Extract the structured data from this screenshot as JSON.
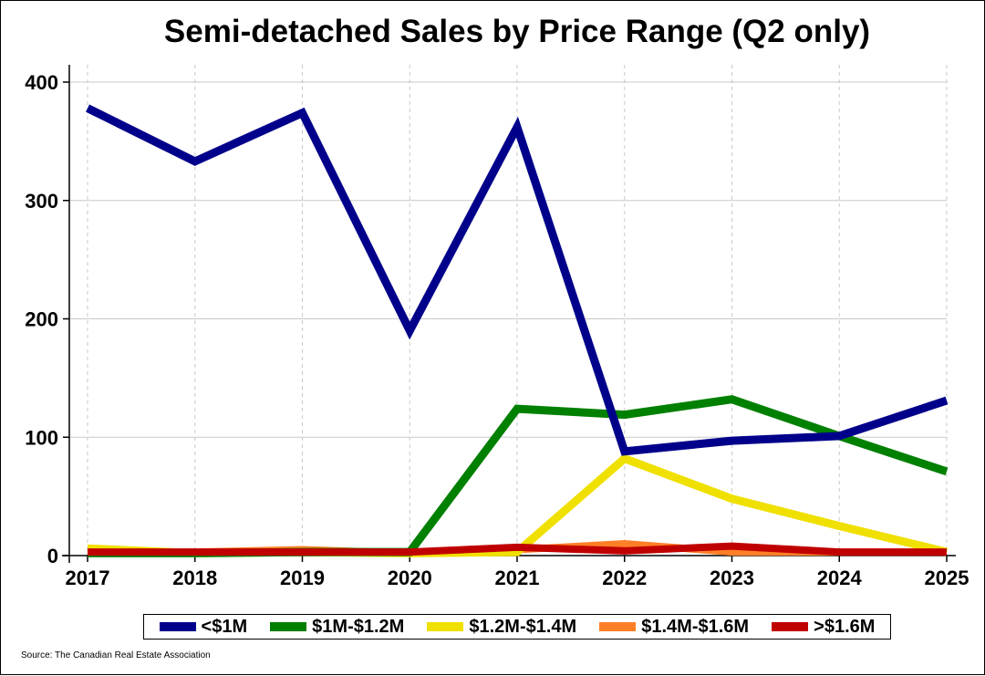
{
  "chart_data": {
    "type": "line",
    "title": "Semi-detached Sales by Price Range (Q2 only)",
    "xlabel": "",
    "ylabel": "",
    "x": [
      "2017",
      "2018",
      "2019",
      "2020",
      "2021",
      "2022",
      "2023",
      "2024",
      "2025"
    ],
    "ylim": [
      0,
      410
    ],
    "yticks": [
      0,
      100,
      200,
      300,
      400
    ],
    "grid": true,
    "legend_position": "bottom",
    "series": [
      {
        "name": "<$1M",
        "color": "#00008B",
        "values": [
          378,
          333,
          374,
          190,
          362,
          88,
          97,
          101,
          131
        ]
      },
      {
        "name": "$1M-$1.2M",
        "color": "#008000",
        "values": [
          2,
          2,
          3,
          3,
          124,
          119,
          132,
          101,
          71
        ]
      },
      {
        "name": "$1.2M-$1.4M",
        "color": "#F0E000",
        "values": [
          6,
          2,
          3,
          2,
          3,
          82,
          48,
          25,
          3
        ]
      },
      {
        "name": "$1.4M-$1.6M",
        "color": "#FF7F27",
        "values": [
          3,
          3,
          5,
          2,
          5,
          10,
          3,
          3,
          3
        ]
      },
      {
        "name": ">$1.6M",
        "color": "#C00000",
        "values": [
          3,
          3,
          3,
          3,
          7,
          4,
          8,
          3,
          3
        ]
      }
    ]
  },
  "source": "Source: The Canadian Real Estate Association"
}
